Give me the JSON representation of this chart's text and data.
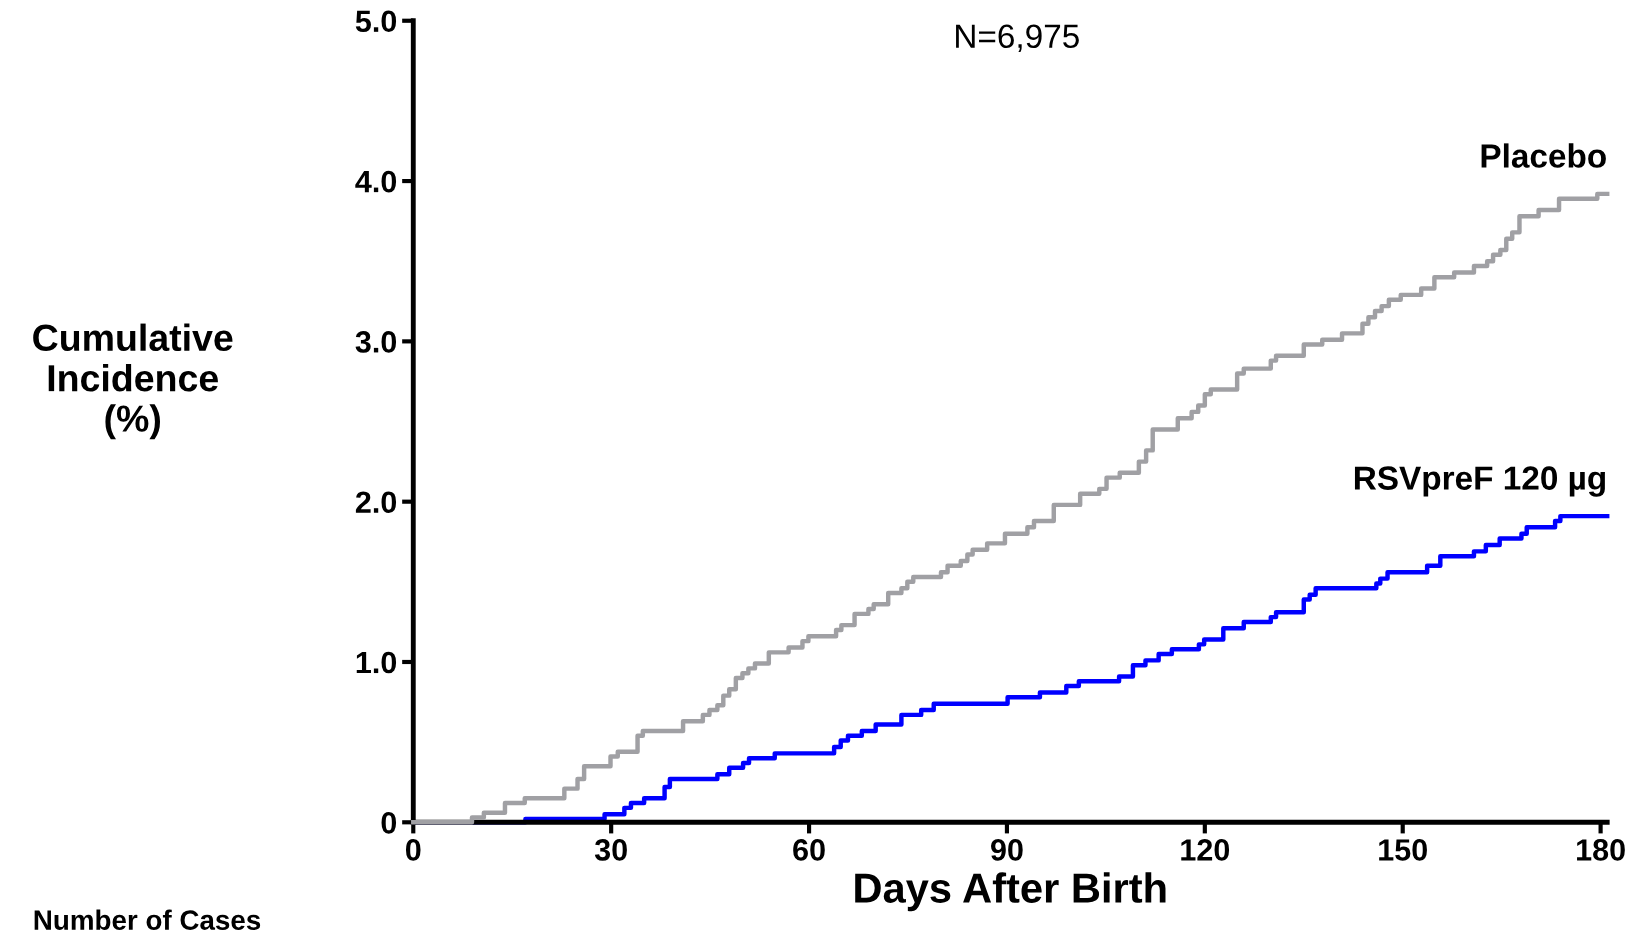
{
  "chart_data": {
    "type": "step",
    "ylabel": "Cumulative\nIncidence\n(%)",
    "xlabel": "Days After Birth",
    "annotations": [
      "N=6,975",
      "Number of Cases"
    ],
    "xlim": [
      0,
      181
    ],
    "xticks": [
      0,
      30,
      60,
      90,
      120,
      150,
      180
    ],
    "ylim": [
      0,
      5
    ],
    "yticks": [
      {
        "value": 0,
        "label": "0"
      },
      {
        "value": 1,
        "label": "1.0"
      },
      {
        "value": 2,
        "label": "2.0"
      },
      {
        "value": 3,
        "label": "3.0"
      },
      {
        "value": 4,
        "label": "4.0"
      },
      {
        "value": 5,
        "label": "5.0"
      }
    ],
    "grid": false,
    "legend": false,
    "series": [
      {
        "name": "RSVpreF 120 µg",
        "color": "#0000ff",
        "x": [
          0,
          17,
          29,
          32,
          33,
          35,
          38.1,
          38.9,
          46.1,
          47.9,
          50,
          50.9,
          54.8,
          63.8,
          64.8,
          65.9,
          68,
          70.1,
          74,
          77,
          78.9,
          90.1,
          95,
          99,
          100.9,
          107,
          109.1,
          111,
          113,
          115,
          119.1,
          119.9,
          122.8,
          125.9,
          130,
          130.8,
          135,
          135.9,
          136.8,
          146,
          146.6,
          147.7,
          153.7,
          155.7,
          160.8,
          162.6,
          164.7,
          168,
          168.8,
          173.1,
          173.9,
          181
        ],
        "values": [
          0,
          0.02,
          0.05,
          0.09,
          0.12,
          0.15,
          0.22,
          0.27,
          0.3,
          0.34,
          0.37,
          0.4,
          0.43,
          0.47,
          0.51,
          0.54,
          0.57,
          0.61,
          0.67,
          0.7,
          0.74,
          0.78,
          0.81,
          0.85,
          0.88,
          0.91,
          0.98,
          1.01,
          1.05,
          1.08,
          1.11,
          1.14,
          1.21,
          1.25,
          1.28,
          1.31,
          1.39,
          1.42,
          1.46,
          1.49,
          1.52,
          1.56,
          1.6,
          1.66,
          1.69,
          1.73,
          1.77,
          1.8,
          1.84,
          1.88,
          1.91,
          1.91
        ]
      },
      {
        "name": "Placebo",
        "color": "#a0a0a4",
        "x": [
          0,
          8.9,
          10.7,
          13.9,
          16.9,
          22.9,
          24.9,
          25.9,
          29.9,
          31,
          34,
          34.8,
          40.9,
          43.9,
          44.9,
          46.1,
          47,
          47.9,
          48.9,
          49.9,
          50.8,
          51.8,
          53.9,
          56.9,
          59,
          59.9,
          64.1,
          64.9,
          66.9,
          69,
          69.8,
          72,
          74,
          74.9,
          75.8,
          80,
          81,
          83,
          84,
          84.8,
          87,
          89.7,
          93.1,
          94.1,
          97.1,
          101.1,
          104,
          105.1,
          107.1,
          110,
          111.1,
          112.1,
          115.9,
          118,
          119,
          120,
          120.9,
          124.9,
          125.9,
          130,
          130.8,
          135,
          137.8,
          140.8,
          143.9,
          144.8,
          145.8,
          146.8,
          147.9,
          149.7,
          152.8,
          154.8,
          157.8,
          160.8,
          162.8,
          163.7,
          164.8,
          165.7,
          166.6,
          167.7,
          170.6,
          173.7,
          179.5,
          181
        ],
        "values": [
          0,
          0.03,
          0.06,
          0.12,
          0.15,
          0.21,
          0.27,
          0.35,
          0.41,
          0.44,
          0.54,
          0.57,
          0.63,
          0.67,
          0.7,
          0.73,
          0.79,
          0.83,
          0.9,
          0.93,
          0.96,
          0.99,
          1.06,
          1.09,
          1.13,
          1.16,
          1.2,
          1.23,
          1.3,
          1.33,
          1.36,
          1.43,
          1.46,
          1.5,
          1.53,
          1.56,
          1.6,
          1.63,
          1.67,
          1.7,
          1.74,
          1.8,
          1.84,
          1.88,
          1.98,
          2.05,
          2.08,
          2.15,
          2.18,
          2.25,
          2.32,
          2.45,
          2.52,
          2.56,
          2.6,
          2.67,
          2.7,
          2.8,
          2.83,
          2.88,
          2.91,
          2.98,
          3.01,
          3.05,
          3.11,
          3.15,
          3.19,
          3.22,
          3.26,
          3.29,
          3.33,
          3.4,
          3.43,
          3.47,
          3.5,
          3.54,
          3.57,
          3.64,
          3.68,
          3.78,
          3.82,
          3.89,
          3.92,
          3.92
        ]
      }
    ]
  }
}
